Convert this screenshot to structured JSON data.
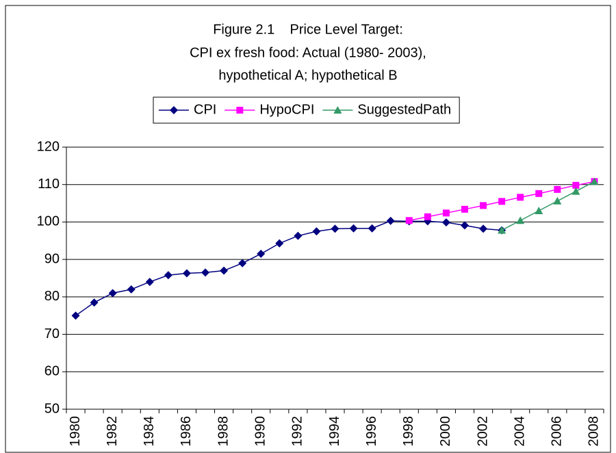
{
  "chart_data": {
    "type": "line",
    "title": [
      "Figure 2.1    Price Level Target:",
      "CPI ex fresh food: Actual (1980- 2003),",
      "hypothetical A; hypothetical B"
    ],
    "categories": [
      "1980",
      null,
      "1982",
      null,
      "1984",
      null,
      "1986",
      null,
      "1988",
      null,
      "1990",
      null,
      "1992",
      null,
      "1994",
      null,
      "1996",
      null,
      "1998",
      null,
      "2000",
      null,
      "2002",
      null,
      "2004",
      null,
      "2006",
      null,
      "2008"
    ],
    "series": [
      {
        "name": "CPI",
        "color": "#000080",
        "marker": "diamond",
        "values": [
          75,
          78.5,
          81,
          82,
          84,
          85.8,
          86.3,
          86.5,
          87,
          89,
          91.5,
          94.3,
          96.3,
          97.5,
          98.2,
          98.3,
          98.3,
          100.3,
          100.2,
          100.2,
          99.9,
          99.1,
          98.2,
          97.8,
          null,
          null,
          null,
          null,
          null
        ]
      },
      {
        "name": "HypoCPI",
        "color": "#ff00ff",
        "marker": "square",
        "values": [
          null,
          null,
          null,
          null,
          null,
          null,
          null,
          null,
          null,
          null,
          null,
          null,
          null,
          null,
          null,
          null,
          null,
          null,
          100.4,
          101.4,
          102.4,
          103.4,
          104.4,
          105.5,
          106.6,
          107.6,
          108.7,
          109.8,
          110.8
        ]
      },
      {
        "name": "SuggestedPath",
        "color": "#339966",
        "marker": "triangle",
        "values": [
          null,
          null,
          null,
          null,
          null,
          null,
          null,
          null,
          null,
          null,
          null,
          null,
          null,
          null,
          null,
          null,
          null,
          null,
          null,
          null,
          null,
          null,
          null,
          97.8,
          100.4,
          103,
          105.6,
          108.2,
          110.8
        ]
      }
    ],
    "ylim": [
      50,
      120
    ],
    "yticks": [
      50,
      60,
      70,
      80,
      90,
      100,
      110,
      120
    ],
    "grid": true,
    "legend": "top"
  }
}
